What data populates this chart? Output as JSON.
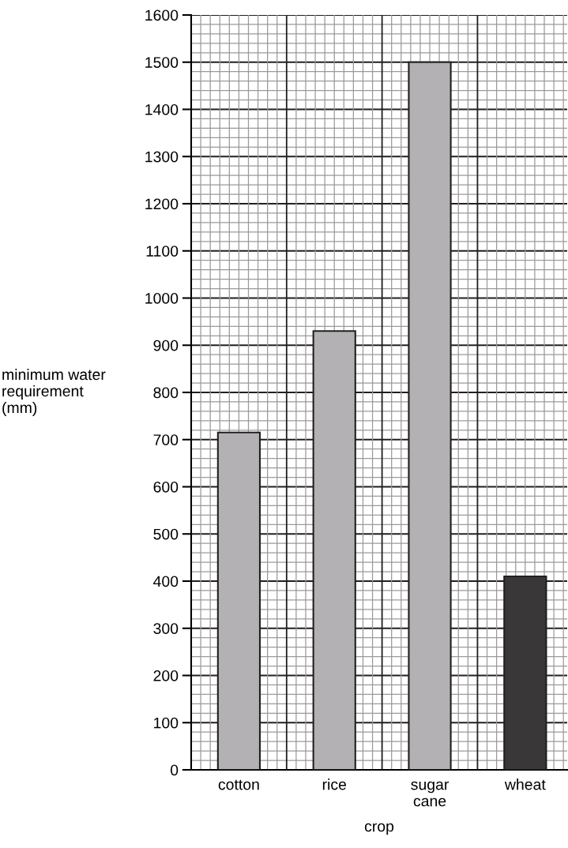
{
  "chart_data": {
    "type": "bar",
    "categories": [
      "cotton",
      "rice",
      "sugar\ncane",
      "wheat"
    ],
    "values": [
      715,
      930,
      1500,
      410
    ],
    "colors": [
      "#b3b1b3",
      "#b3b1b3",
      "#b3b1b3",
      "#3a3738"
    ],
    "xlabel": "crop",
    "ylabel": "minimum water\nrequirement\n(mm)",
    "ylim": [
      0,
      1600
    ],
    "yticks": [
      0,
      100,
      200,
      300,
      400,
      500,
      600,
      700,
      800,
      900,
      1000,
      1100,
      1200,
      1300,
      1400,
      1500,
      1600
    ],
    "grid": true
  }
}
